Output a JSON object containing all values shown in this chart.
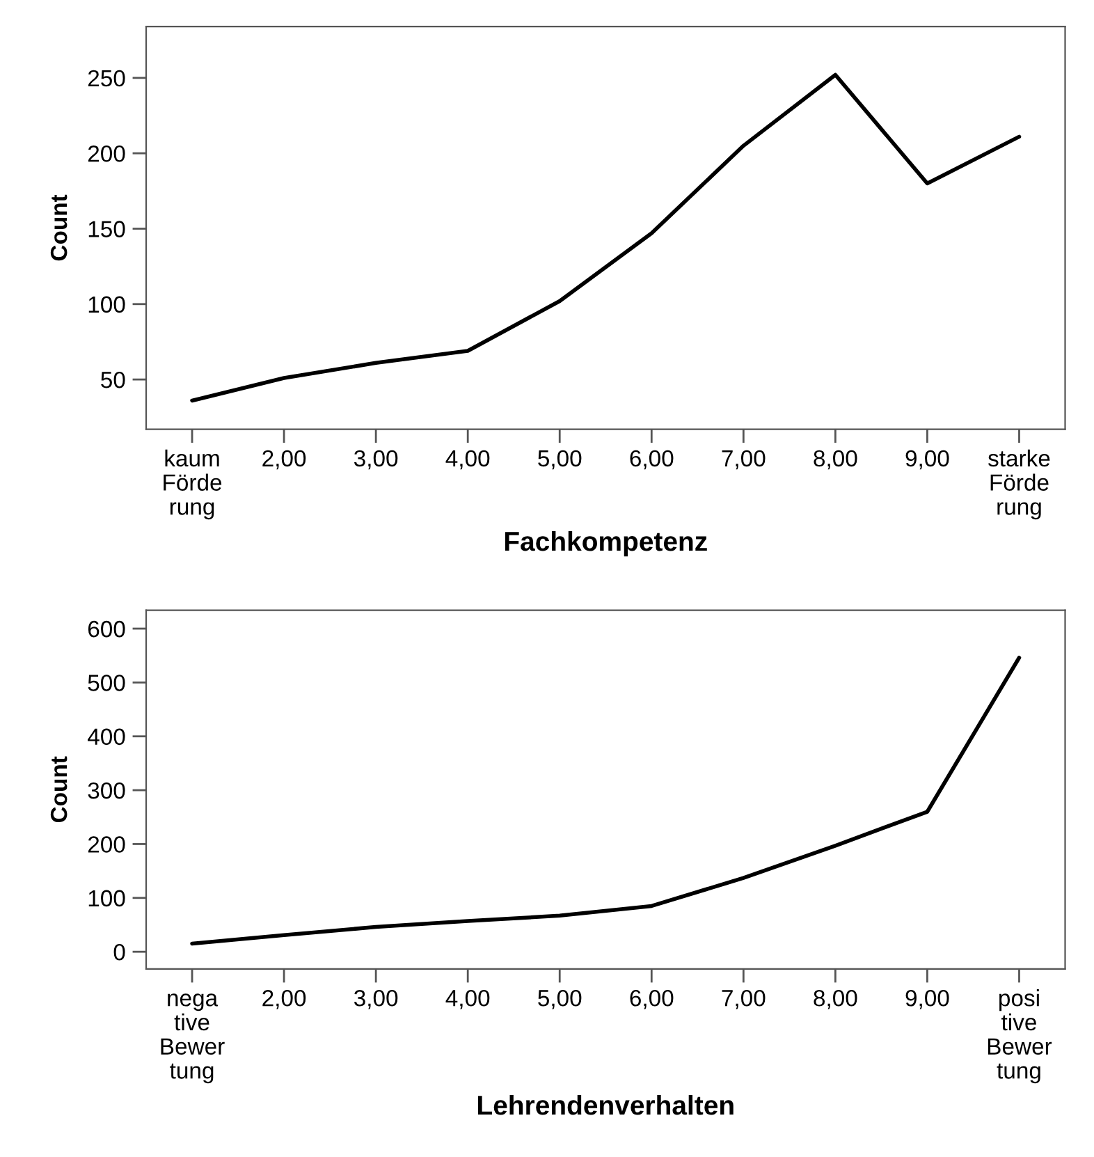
{
  "chart_data": [
    {
      "type": "line",
      "xlabel": "Fachkompetenz",
      "ylabel": "Count",
      "categories": [
        "kaum\nFörde\nrung",
        "2,00",
        "3,00",
        "4,00",
        "5,00",
        "6,00",
        "7,00",
        "8,00",
        "9,00",
        "starke\nFörde\nrung"
      ],
      "series": [
        {
          "color": "#000000",
          "values": [
            36,
            51,
            61,
            69,
            102,
            147,
            205,
            252,
            180,
            211
          ]
        }
      ],
      "ylim": [
        17,
        284
      ],
      "yticks": [
        50,
        100,
        150,
        200,
        250
      ],
      "grid": false,
      "marker": "none",
      "line_style": "solid"
    },
    {
      "type": "line",
      "xlabel": "Lehrendenverhalten",
      "ylabel": "Count",
      "categories": [
        "nega\ntive\nBewer\ntung",
        "2,00",
        "3,00",
        "4,00",
        "5,00",
        "6,00",
        "7,00",
        "8,00",
        "9,00",
        "posi\ntive\nBewer\ntung"
      ],
      "series": [
        {
          "color": "#000000",
          "values": [
            15,
            31,
            46,
            57,
            67,
            85,
            137,
            197,
            260,
            546
          ]
        }
      ],
      "ylim": [
        -32,
        634
      ],
      "yticks": [
        0,
        100,
        200,
        300,
        400,
        500,
        600
      ],
      "grid": false,
      "marker": "none",
      "line_style": "solid"
    }
  ]
}
